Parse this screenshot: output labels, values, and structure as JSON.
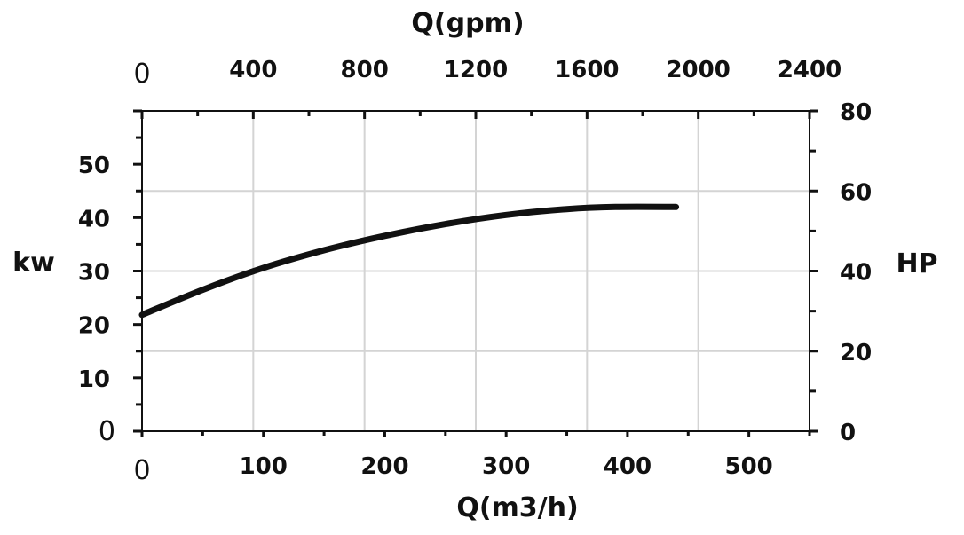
{
  "chart_data": {
    "type": "line",
    "x_axis_bottom": {
      "label": "Q(m3/h)",
      "range": [
        0,
        550
      ],
      "tick_labels": [
        "0",
        "100",
        "200",
        "300",
        "400",
        "500"
      ],
      "tick_values": [
        0,
        100,
        200,
        300,
        400,
        500
      ]
    },
    "x_axis_top": {
      "label": "Q(gpm)",
      "range": [
        0,
        2400
      ],
      "tick_labels": [
        "0",
        "400",
        "800",
        "1200",
        "1600",
        "2000",
        "2400"
      ],
      "tick_values": [
        0,
        400,
        800,
        1200,
        1600,
        2000,
        2400
      ]
    },
    "y_axis_left": {
      "label": "kw",
      "range": [
        0,
        60
      ],
      "tick_labels": [
        "0",
        "10",
        "20",
        "30",
        "40",
        "50"
      ],
      "tick_values": [
        0,
        10,
        20,
        30,
        40,
        50
      ]
    },
    "y_axis_right": {
      "label": "HP",
      "range": [
        0,
        80
      ],
      "tick_labels": [
        "0",
        "20",
        "40",
        "60",
        "80"
      ],
      "tick_values": [
        0,
        20,
        40,
        60,
        80
      ]
    },
    "grid": true,
    "series": [
      {
        "color": "#111111",
        "x": [
          0,
          50,
          100,
          150,
          200,
          250,
          300,
          350,
          390,
          440
        ],
        "y": [
          21.8,
          26.5,
          30.6,
          33.9,
          36.6,
          38.8,
          40.5,
          41.6,
          42.0,
          42.0
        ]
      }
    ]
  }
}
